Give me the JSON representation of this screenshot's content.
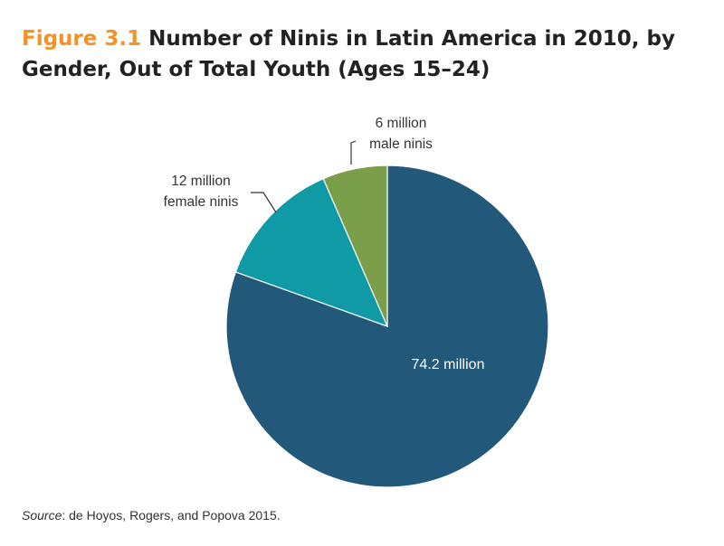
{
  "figure": {
    "label": "Figure 3.1",
    "title": "Number of Ninis in Latin America in 2010, by Gender, Out of Total Youth (Ages 15–24)"
  },
  "source": {
    "prefix": "Source",
    "text": ": de Hoyos, Rogers, and Popova 2015."
  },
  "chart_data": {
    "type": "pie",
    "title": "Number of Ninis in Latin America in 2010, by Gender, Out of Total Youth (Ages 15–24)",
    "slices": [
      {
        "value": 74.2,
        "label": "74.2 million",
        "color": "#22587a"
      },
      {
        "value": 12,
        "label_lines": [
          "12 million",
          "female ninis"
        ],
        "color": "#0f9aa6"
      },
      {
        "value": 6,
        "label_lines": [
          "6 million",
          "male ninis"
        ],
        "color": "#7b9e4a"
      }
    ],
    "start": "12 o'clock",
    "direction": "clockwise",
    "legend": "none"
  }
}
